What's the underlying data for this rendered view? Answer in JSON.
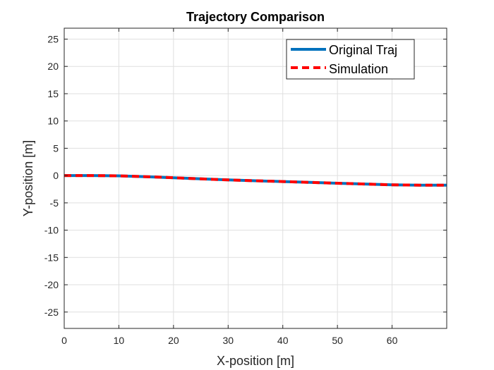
{
  "chart_data": {
    "type": "line",
    "title": "Trajectory Comparison",
    "xlabel": "X-position [m]",
    "ylabel": "Y-position [m]",
    "xlim": [
      0,
      70
    ],
    "ylim": [
      -28,
      27
    ],
    "xticks": [
      0,
      10,
      20,
      30,
      40,
      50,
      60
    ],
    "yticks": [
      25,
      20,
      15,
      10,
      5,
      0,
      -5,
      -10,
      -15,
      -20,
      -25
    ],
    "grid": true,
    "legend_position": "top-right",
    "series": [
      {
        "name": "Original Traj",
        "color": "#0072BD",
        "style": "solid",
        "x": [
          0,
          5,
          10,
          15,
          20,
          25,
          30,
          35,
          40,
          45,
          50,
          55,
          60,
          65,
          70
        ],
        "y": [
          0,
          0,
          -0.05,
          -0.2,
          -0.4,
          -0.6,
          -0.8,
          -0.95,
          -1.1,
          -1.25,
          -1.4,
          -1.55,
          -1.7,
          -1.75,
          -1.75
        ]
      },
      {
        "name": "Simulation",
        "color": "#FF0000",
        "style": "dashed",
        "x": [
          0,
          5,
          10,
          15,
          20,
          25,
          30,
          35,
          40,
          45,
          50,
          55,
          60,
          65,
          70
        ],
        "y": [
          0,
          0,
          -0.05,
          -0.2,
          -0.4,
          -0.6,
          -0.8,
          -0.95,
          -1.1,
          -1.25,
          -1.4,
          -1.55,
          -1.7,
          -1.75,
          -1.75
        ]
      }
    ]
  }
}
